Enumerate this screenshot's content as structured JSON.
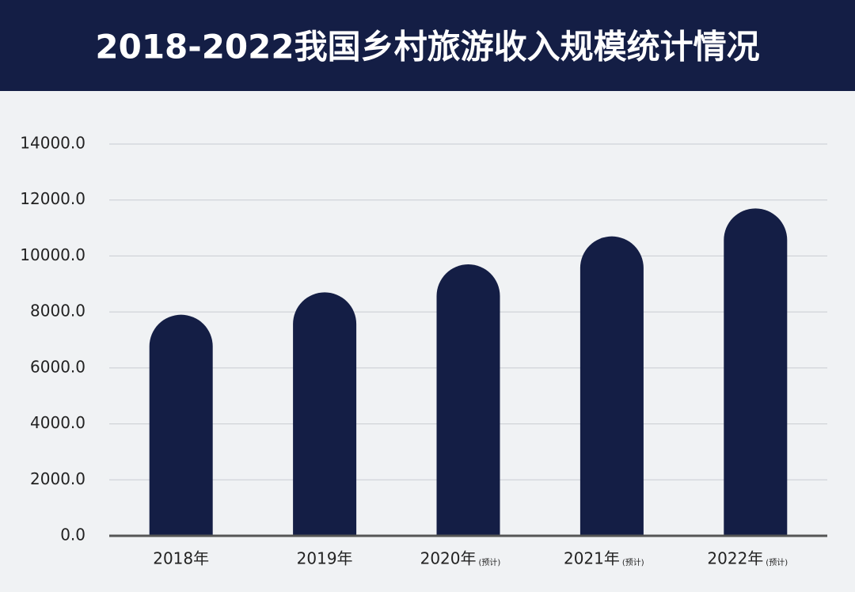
{
  "chart_data": {
    "type": "bar",
    "title": "2018-2022我国乡村旅游收入规模统计情况",
    "categories": [
      "2018年",
      "2019年",
      "2020年",
      "2021年",
      "2022年"
    ],
    "category_notes": [
      null,
      null,
      "(预计)",
      "(预计)",
      "(预计)"
    ],
    "values": [
      7900,
      8700,
      9700,
      10700,
      11700
    ],
    "color": "#141e45",
    "ylim": [
      0,
      14000
    ],
    "yticks": [
      {
        "value": 0,
        "label": "0.0"
      },
      {
        "value": 2000,
        "label": "2000.0"
      },
      {
        "value": 4000,
        "label": "4000.0"
      },
      {
        "value": 6000,
        "label": "6000.0"
      },
      {
        "value": 8000,
        "label": "8000.0"
      },
      {
        "value": 10000,
        "label": "10000.0"
      },
      {
        "value": 12000,
        "label": "12000.0"
      },
      {
        "value": 14000,
        "label": "14000.0"
      }
    ],
    "grid": true
  }
}
